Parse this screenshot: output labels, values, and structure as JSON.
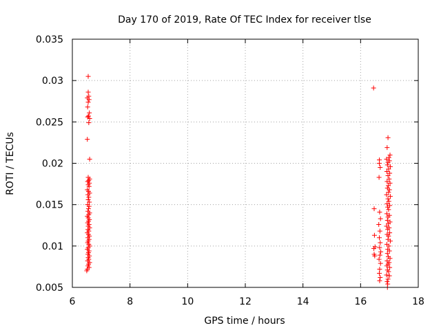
{
  "chart_data": {
    "type": "scatter",
    "title": "Day 170 of 2019, Rate Of TEC Index for receiver tlse",
    "xlabel": "GPS time / hours",
    "ylabel": "ROTI / TECUs",
    "xlim": [
      6,
      18
    ],
    "ylim": [
      0.005,
      0.035
    ],
    "xticks": [
      6,
      8,
      10,
      12,
      14,
      16,
      18
    ],
    "yticks": [
      0.005,
      0.01,
      0.015,
      0.02,
      0.025,
      0.03,
      0.035
    ],
    "xtick_labels": [
      "6",
      "8",
      "10",
      "12",
      "14",
      "16",
      "18"
    ],
    "ytick_labels": [
      "0.005",
      "0.01",
      "0.015",
      "0.02",
      "0.025",
      "0.03",
      "0.035"
    ],
    "grid": true,
    "marker": "+",
    "marker_color": "#ff0000",
    "series": [
      {
        "name": "ROTI",
        "points": [
          [
            6.55,
            0.0305
          ],
          [
            6.55,
            0.0286
          ],
          [
            6.57,
            0.0281
          ],
          [
            6.52,
            0.0279
          ],
          [
            6.58,
            0.0277
          ],
          [
            6.55,
            0.0274
          ],
          [
            6.53,
            0.0268
          ],
          [
            6.59,
            0.0261
          ],
          [
            6.56,
            0.0257
          ],
          [
            6.53,
            0.0256
          ],
          [
            6.6,
            0.0254
          ],
          [
            6.57,
            0.0249
          ],
          [
            6.52,
            0.0229
          ],
          [
            6.6,
            0.0205
          ],
          [
            6.55,
            0.0183
          ],
          [
            6.6,
            0.0181
          ],
          [
            6.57,
            0.0179
          ],
          [
            6.53,
            0.0178
          ],
          [
            6.59,
            0.0176
          ],
          [
            6.55,
            0.0174
          ],
          [
            6.58,
            0.0172
          ],
          [
            6.52,
            0.0168
          ],
          [
            6.56,
            0.0166
          ],
          [
            6.6,
            0.0164
          ],
          [
            6.54,
            0.0162
          ],
          [
            6.57,
            0.0159
          ],
          [
            6.55,
            0.0156
          ],
          [
            6.59,
            0.0153
          ],
          [
            6.53,
            0.015
          ],
          [
            6.58,
            0.0148
          ],
          [
            6.56,
            0.0145
          ],
          [
            6.54,
            0.0142
          ],
          [
            6.6,
            0.014
          ],
          [
            6.57,
            0.0138
          ],
          [
            6.52,
            0.0136
          ],
          [
            6.55,
            0.0134
          ],
          [
            6.59,
            0.0132
          ],
          [
            6.56,
            0.013
          ],
          [
            6.53,
            0.0128
          ],
          [
            6.58,
            0.0126
          ],
          [
            6.55,
            0.0124
          ],
          [
            6.6,
            0.0122
          ],
          [
            6.54,
            0.012
          ],
          [
            6.57,
            0.0118
          ],
          [
            6.52,
            0.0116
          ],
          [
            6.56,
            0.0114
          ],
          [
            6.59,
            0.0112
          ],
          [
            6.54,
            0.011
          ],
          [
            6.58,
            0.0108
          ],
          [
            6.55,
            0.0106
          ],
          [
            6.53,
            0.0104
          ],
          [
            6.57,
            0.0102
          ],
          [
            6.6,
            0.01
          ],
          [
            6.55,
            0.0098
          ],
          [
            6.52,
            0.0096
          ],
          [
            6.58,
            0.0094
          ],
          [
            6.56,
            0.0092
          ],
          [
            6.54,
            0.009
          ],
          [
            6.59,
            0.0088
          ],
          [
            6.55,
            0.0086
          ],
          [
            6.57,
            0.0084
          ],
          [
            6.53,
            0.0082
          ],
          [
            6.6,
            0.008
          ],
          [
            6.56,
            0.0078
          ],
          [
            6.54,
            0.0076
          ],
          [
            6.58,
            0.0074
          ],
          [
            6.52,
            0.0072
          ],
          [
            6.5,
            0.007
          ],
          [
            16.45,
            0.0291
          ],
          [
            16.95,
            0.0231
          ],
          [
            16.92,
            0.0219
          ],
          [
            17.02,
            0.021
          ],
          [
            16.98,
            0.0207
          ],
          [
            16.9,
            0.0205
          ],
          [
            16.65,
            0.0204
          ],
          [
            17.0,
            0.0203
          ],
          [
            16.95,
            0.0201
          ],
          [
            16.65,
            0.02
          ],
          [
            16.93,
            0.0198
          ],
          [
            17.03,
            0.0196
          ],
          [
            16.68,
            0.0195
          ],
          [
            16.97,
            0.0193
          ],
          [
            16.91,
            0.019
          ],
          [
            17.01,
            0.0188
          ],
          [
            16.95,
            0.0185
          ],
          [
            16.64,
            0.0183
          ],
          [
            16.99,
            0.0181
          ],
          [
            16.92,
            0.0178
          ],
          [
            17.02,
            0.0176
          ],
          [
            16.96,
            0.0173
          ],
          [
            16.93,
            0.017
          ],
          [
            17.0,
            0.0168
          ],
          [
            16.97,
            0.0165
          ],
          [
            16.9,
            0.0162
          ],
          [
            17.03,
            0.016
          ],
          [
            16.95,
            0.0157
          ],
          [
            16.98,
            0.0154
          ],
          [
            16.92,
            0.0151
          ],
          [
            16.47,
            0.0145
          ],
          [
            17.01,
            0.0149
          ],
          [
            16.94,
            0.0147
          ],
          [
            16.97,
            0.0144
          ],
          [
            16.66,
            0.0141
          ],
          [
            16.91,
            0.0139
          ],
          [
            17.0,
            0.0137
          ],
          [
            16.95,
            0.0135
          ],
          [
            16.69,
            0.0133
          ],
          [
            16.93,
            0.0131
          ],
          [
            17.02,
            0.0129
          ],
          [
            16.96,
            0.0127
          ],
          [
            16.63,
            0.0126
          ],
          [
            16.9,
            0.0124
          ],
          [
            16.99,
            0.0122
          ],
          [
            16.94,
            0.012
          ],
          [
            16.67,
            0.0118
          ],
          [
            17.01,
            0.0116
          ],
          [
            16.48,
            0.0113
          ],
          [
            16.92,
            0.0114
          ],
          [
            16.97,
            0.0112
          ],
          [
            16.65,
            0.011
          ],
          [
            16.95,
            0.0108
          ],
          [
            17.03,
            0.0106
          ],
          [
            16.68,
            0.0104
          ],
          [
            16.91,
            0.0102
          ],
          [
            16.98,
            0.01
          ],
          [
            16.5,
            0.0099
          ],
          [
            16.46,
            0.0097
          ],
          [
            16.66,
            0.0098
          ],
          [
            16.94,
            0.0096
          ],
          [
            17.0,
            0.0094
          ],
          [
            16.7,
            0.0093
          ],
          [
            16.93,
            0.0091
          ],
          [
            16.47,
            0.009
          ],
          [
            16.49,
            0.0088
          ],
          [
            16.67,
            0.0089
          ],
          [
            16.96,
            0.0087
          ],
          [
            17.02,
            0.0085
          ],
          [
            16.64,
            0.0084
          ],
          [
            16.92,
            0.0082
          ],
          [
            16.99,
            0.008
          ],
          [
            16.69,
            0.0079
          ],
          [
            16.95,
            0.0078
          ],
          [
            16.91,
            0.0076
          ],
          [
            17.01,
            0.0074
          ],
          [
            16.66,
            0.0072
          ],
          [
            16.93,
            0.0071
          ],
          [
            16.97,
            0.0069
          ],
          [
            16.65,
            0.0067
          ],
          [
            16.9,
            0.0065
          ],
          [
            17.0,
            0.0064
          ],
          [
            16.68,
            0.0062
          ],
          [
            16.95,
            0.006
          ],
          [
            16.92,
            0.0057
          ],
          [
            16.66,
            0.0058
          ],
          [
            16.94,
            0.0054
          ],
          [
            16.93,
            0.005
          ]
        ]
      }
    ]
  }
}
